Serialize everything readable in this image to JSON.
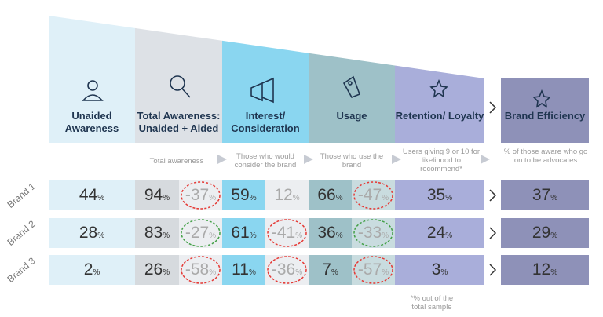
{
  "unit": "%",
  "stages": [
    {
      "title": "Unaided Awareness"
    },
    {
      "title": "Total Awareness: Unaided + Aided",
      "note": "Total awareness"
    },
    {
      "title": "Interest/ Consideration",
      "note": "Those who would consider the brand"
    },
    {
      "title": "Usage",
      "note": "Those who use the brand"
    },
    {
      "title": "Retention/ Loyalty",
      "note": "Users giving 9 or 10 for likelihood to recommend*"
    },
    {
      "title": "Brand Efficiency",
      "note": "% of those aware who go on to be advocates"
    }
  ],
  "rows": [
    {
      "brand": "Brand 1",
      "unaided": 44,
      "total": 94,
      "drop1": -37,
      "drop1_circle": "red",
      "interest": 59,
      "drop2": 12,
      "drop2_circle": null,
      "usage": 66,
      "drop3": -47,
      "drop3_circle": "red",
      "retention": 35,
      "efficiency": 37
    },
    {
      "brand": "Brand 2",
      "unaided": 28,
      "total": 83,
      "drop1": -27,
      "drop1_circle": "green",
      "interest": 61,
      "drop2": -41,
      "drop2_circle": "red",
      "usage": 36,
      "drop3": -33,
      "drop3_circle": "green",
      "retention": 24,
      "efficiency": 29
    },
    {
      "brand": "Brand 3",
      "unaided": 2,
      "total": 26,
      "drop1": -58,
      "drop1_circle": "red",
      "interest": 11,
      "drop2": -36,
      "drop2_circle": "red",
      "usage": 7,
      "drop3": -57,
      "drop3_circle": "red",
      "retention": 3,
      "efficiency": 12
    }
  ],
  "footnote": "*% out of the total sample"
}
